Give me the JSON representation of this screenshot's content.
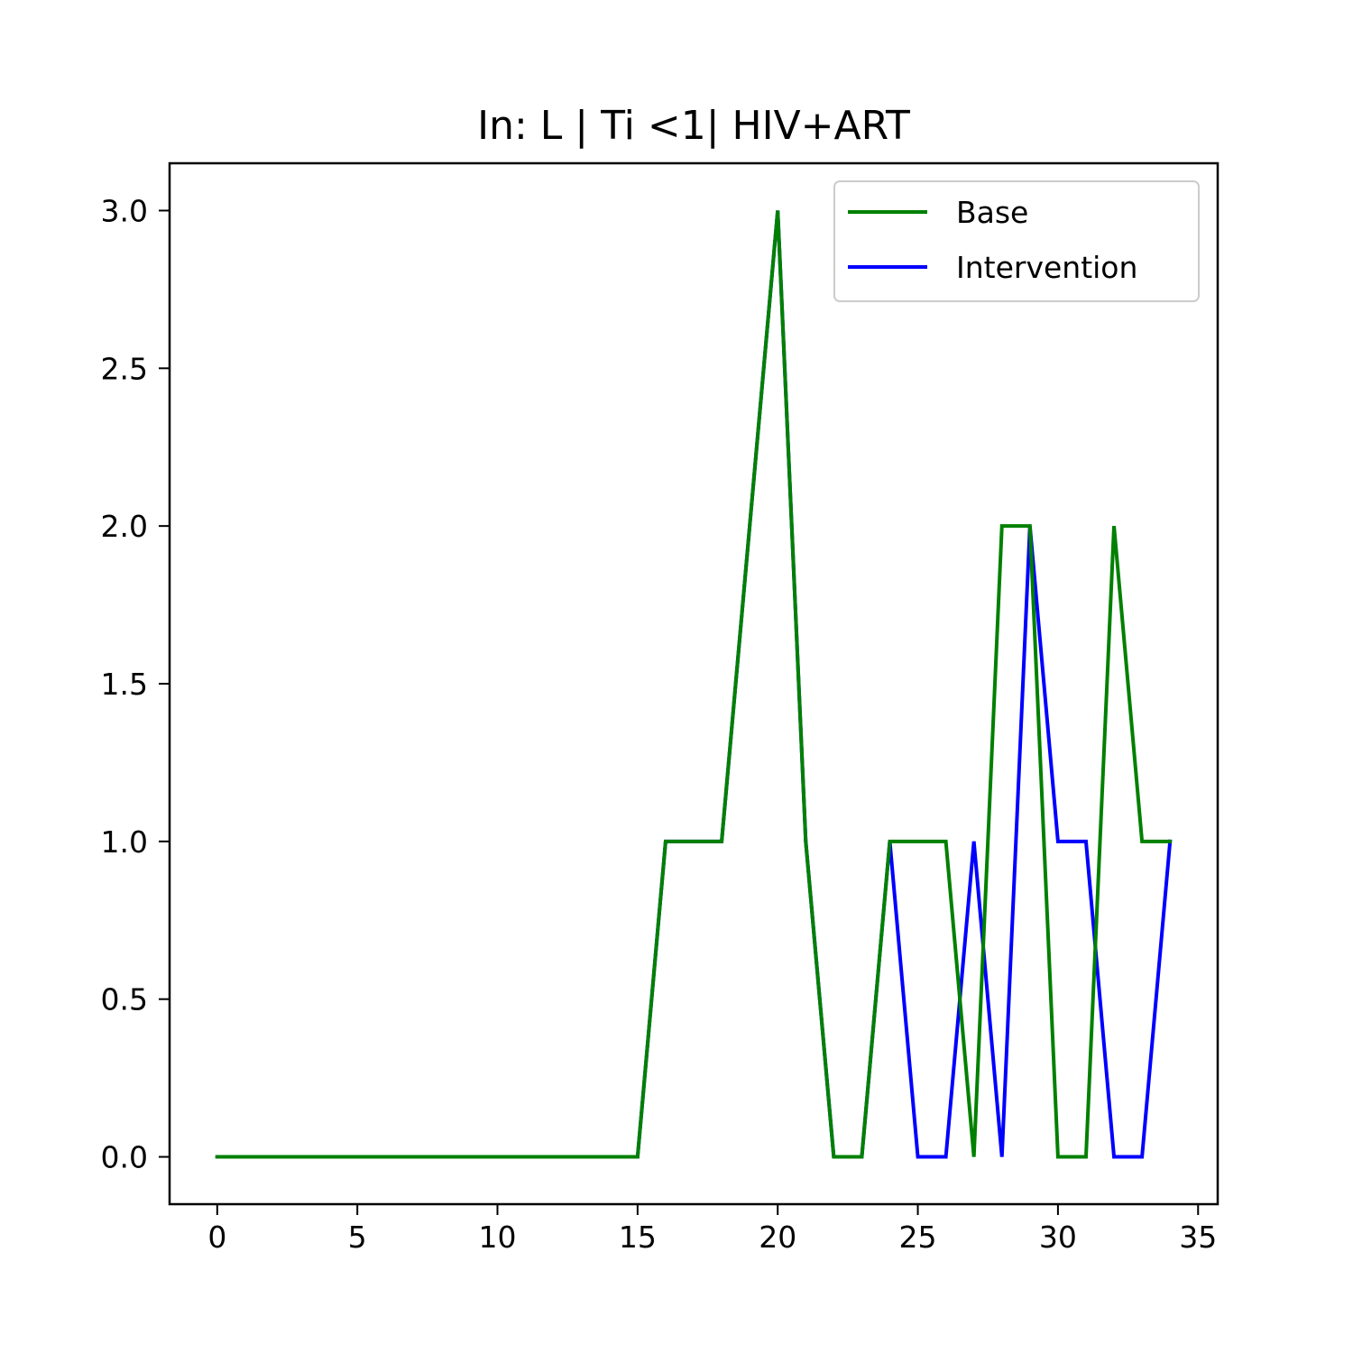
{
  "chart_data": {
    "type": "line",
    "title": "In: L | Ti <1| HIV+ART",
    "xlabel": "",
    "ylabel": "",
    "xlim": [
      -1.7,
      35.7
    ],
    "ylim": [
      -0.15,
      3.15
    ],
    "xticks": [
      0,
      5,
      10,
      15,
      20,
      25,
      30,
      35
    ],
    "yticks": [
      0.0,
      0.5,
      1.0,
      1.5,
      2.0,
      2.5,
      3.0
    ],
    "xtick_labels": [
      "0",
      "5",
      "10",
      "15",
      "20",
      "25",
      "30",
      "35"
    ],
    "ytick_labels": [
      "0.0",
      "0.5",
      "1.0",
      "1.5",
      "2.0",
      "2.5",
      "3.0"
    ],
    "grid": false,
    "legend_position": "top-right",
    "x": [
      0,
      1,
      2,
      3,
      4,
      5,
      6,
      7,
      8,
      9,
      10,
      11,
      12,
      13,
      14,
      15,
      16,
      17,
      18,
      19,
      20,
      21,
      22,
      23,
      24,
      25,
      26,
      27,
      28,
      29,
      30,
      31,
      32,
      33,
      34
    ],
    "series": [
      {
        "name": "Intervention",
        "color": "#0000ff",
        "values": [
          0,
          0,
          0,
          0,
          0,
          0,
          0,
          0,
          0,
          0,
          0,
          0,
          0,
          0,
          0,
          0,
          1,
          1,
          1,
          2,
          3,
          1,
          0,
          0,
          1,
          0,
          0,
          1,
          0,
          2,
          1,
          1,
          0,
          0,
          1
        ]
      },
      {
        "name": "Base",
        "color": "#008000",
        "values": [
          0,
          0,
          0,
          0,
          0,
          0,
          0,
          0,
          0,
          0,
          0,
          0,
          0,
          0,
          0,
          0,
          1,
          1,
          1,
          2,
          3,
          1,
          0,
          0,
          1,
          1,
          1,
          0,
          2,
          2,
          0,
          0,
          2,
          1,
          1
        ]
      }
    ],
    "legend": [
      {
        "name": "Base",
        "color": "#008000"
      },
      {
        "name": "Intervention",
        "color": "#0000ff"
      }
    ]
  }
}
